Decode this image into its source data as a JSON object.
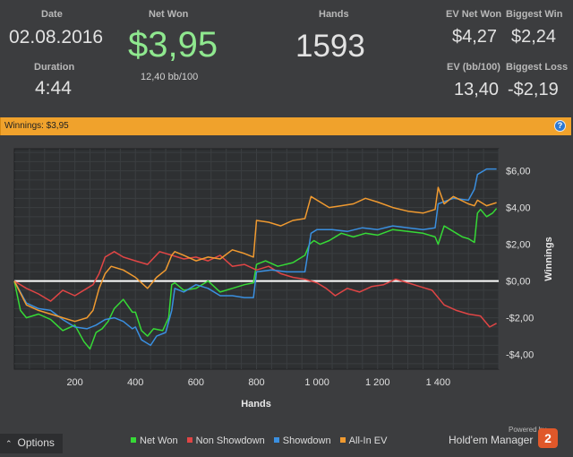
{
  "stats": {
    "date_label": "Date",
    "date_value": "02.08.2016",
    "duration_label": "Duration",
    "duration_value": "4:44",
    "net_won_label": "Net Won",
    "net_won_value": "$3,95",
    "bb_per_100": "12,40 bb/100",
    "hands_label": "Hands",
    "hands_value": "1593",
    "ev_net_won_label": "EV Net Won",
    "ev_net_won_value": "$4,27",
    "biggest_win_label": "Biggest Win",
    "biggest_win_value": "$2,24",
    "ev_bb_label": "EV (bb/100)",
    "ev_bb_value": "13,40",
    "biggest_loss_label": "Biggest Loss",
    "biggest_loss_value": "-$2,19"
  },
  "banner": {
    "text": "Winnings: $3,95",
    "help_icon": "question-icon"
  },
  "colors": {
    "net_won": "#36d936",
    "non_showdown": "#e04545",
    "showdown": "#3a8fe0",
    "all_in_ev": "#f09a30",
    "net_won_text": "#8fe88f",
    "banner": "#f0a22c"
  },
  "chart_data": {
    "type": "line",
    "xlabel": "Hands",
    "ylabel": "Winnings",
    "xlim": [
      0,
      1600
    ],
    "ylim": [
      -4.8,
      7.2
    ],
    "x_ticks": [
      200,
      400,
      600,
      800,
      1000,
      1200,
      1400
    ],
    "x_tick_labels": [
      "200",
      "400",
      "600",
      "800",
      "1 000",
      "1 200",
      "1 400"
    ],
    "y_ticks": [
      6,
      4,
      2,
      0,
      -2,
      -4
    ],
    "y_tick_labels": [
      "$6,00",
      "$4,00",
      "$2,00",
      "$0,00",
      "-$2,00",
      "-$4,00"
    ],
    "grid": true,
    "legend_position": "bottom",
    "series": [
      {
        "name": "Net Won",
        "color": "#36d936",
        "x": [
          0,
          20,
          40,
          80,
          120,
          160,
          200,
          230,
          250,
          270,
          290,
          310,
          330,
          360,
          390,
          400,
          420,
          440,
          460,
          490,
          510,
          520,
          530,
          560,
          600,
          640,
          680,
          720,
          760,
          790,
          800,
          830,
          870,
          920,
          960,
          975,
          990,
          1010,
          1040,
          1080,
          1120,
          1160,
          1200,
          1250,
          1300,
          1350,
          1390,
          1400,
          1420,
          1440,
          1460,
          1480,
          1500,
          1520,
          1530,
          1540,
          1560,
          1580,
          1593
        ],
        "y": [
          0.0,
          -1.6,
          -2.0,
          -1.8,
          -2.1,
          -2.7,
          -2.4,
          -3.3,
          -3.7,
          -2.8,
          -2.6,
          -2.2,
          -1.5,
          -1.0,
          -1.7,
          -1.7,
          -2.7,
          -3.0,
          -2.6,
          -2.7,
          -2.0,
          -0.2,
          -0.1,
          -0.5,
          -0.4,
          0.0,
          -0.6,
          -0.4,
          -0.2,
          -0.1,
          0.9,
          1.1,
          0.8,
          1.0,
          1.4,
          2.0,
          2.2,
          2.0,
          2.2,
          2.6,
          2.4,
          2.6,
          2.5,
          2.8,
          2.7,
          2.6,
          2.4,
          2.0,
          3.0,
          2.8,
          2.6,
          2.4,
          2.3,
          2.1,
          3.7,
          3.9,
          3.5,
          3.7,
          3.95
        ]
      },
      {
        "name": "Non Showdown",
        "color": "#e04545",
        "x": [
          0,
          40,
          80,
          120,
          160,
          200,
          240,
          260,
          280,
          300,
          330,
          360,
          400,
          440,
          480,
          520,
          560,
          600,
          640,
          680,
          720,
          760,
          800,
          840,
          880,
          920,
          960,
          1000,
          1030,
          1060,
          1100,
          1140,
          1180,
          1220,
          1260,
          1300,
          1340,
          1380,
          1420,
          1460,
          1500,
          1540,
          1570,
          1593
        ],
        "y": [
          0.0,
          -0.4,
          -0.7,
          -1.1,
          -0.5,
          -0.8,
          -0.4,
          -0.2,
          0.4,
          1.3,
          1.6,
          1.3,
          1.1,
          0.9,
          1.6,
          1.4,
          1.2,
          1.3,
          1.1,
          1.4,
          0.8,
          0.9,
          0.6,
          0.8,
          0.4,
          0.2,
          0.1,
          -0.1,
          -0.4,
          -0.8,
          -0.4,
          -0.6,
          -0.3,
          -0.2,
          0.1,
          -0.1,
          -0.3,
          -0.5,
          -1.3,
          -1.6,
          -1.8,
          -1.9,
          -2.5,
          -2.3
        ]
      },
      {
        "name": "Showdown",
        "color": "#3a8fe0",
        "x": [
          0,
          40,
          80,
          120,
          160,
          200,
          240,
          270,
          300,
          330,
          360,
          390,
          400,
          420,
          450,
          470,
          500,
          520,
          530,
          560,
          600,
          640,
          680,
          720,
          760,
          790,
          800,
          850,
          900,
          960,
          980,
          1000,
          1050,
          1100,
          1150,
          1200,
          1250,
          1300,
          1350,
          1390,
          1400,
          1450,
          1500,
          1520,
          1530,
          1560,
          1593
        ],
        "y": [
          0.0,
          -1.2,
          -1.5,
          -1.6,
          -2.1,
          -2.5,
          -2.6,
          -2.4,
          -2.1,
          -2.0,
          -2.2,
          -2.6,
          -2.5,
          -3.2,
          -3.5,
          -3.0,
          -2.8,
          -1.6,
          -0.4,
          -0.6,
          -0.2,
          -0.4,
          -0.8,
          -0.8,
          -0.9,
          -0.9,
          0.5,
          0.6,
          0.5,
          0.5,
          2.6,
          2.8,
          2.8,
          2.7,
          2.9,
          2.8,
          3.0,
          2.9,
          2.8,
          2.9,
          4.2,
          4.5,
          4.4,
          5.0,
          5.8,
          6.1,
          6.1
        ]
      },
      {
        "name": "All-In EV",
        "color": "#f09a30",
        "x": [
          0,
          40,
          80,
          120,
          160,
          200,
          240,
          260,
          280,
          300,
          320,
          360,
          400,
          440,
          470,
          500,
          520,
          530,
          560,
          600,
          640,
          680,
          720,
          760,
          790,
          800,
          840,
          880,
          920,
          960,
          980,
          1000,
          1040,
          1080,
          1120,
          1160,
          1200,
          1250,
          1300,
          1350,
          1390,
          1400,
          1420,
          1450,
          1500,
          1520,
          1530,
          1560,
          1593
        ],
        "y": [
          0.0,
          -1.3,
          -1.6,
          -1.8,
          -2.0,
          -2.2,
          -2.0,
          -1.6,
          -0.4,
          0.4,
          0.8,
          0.6,
          0.2,
          -0.4,
          0.2,
          0.6,
          1.4,
          1.6,
          1.4,
          1.1,
          1.3,
          1.2,
          1.7,
          1.5,
          1.3,
          3.3,
          3.2,
          3.0,
          3.3,
          3.4,
          4.6,
          4.4,
          4.0,
          4.1,
          4.2,
          4.5,
          4.3,
          4.0,
          3.8,
          3.7,
          3.9,
          5.1,
          4.2,
          4.6,
          4.2,
          4.1,
          4.4,
          4.1,
          4.27
        ]
      }
    ]
  },
  "legend": [
    {
      "label": "Net Won",
      "color": "#36d936"
    },
    {
      "label": "Non Showdown",
      "color": "#e04545"
    },
    {
      "label": "Showdown",
      "color": "#3a8fe0"
    },
    {
      "label": "All-In EV",
      "color": "#f09a30"
    }
  ],
  "footer": {
    "options_label": "Options",
    "powered_by": "Powered by",
    "brand": "Hold'em Manager",
    "logo_text": "2"
  }
}
